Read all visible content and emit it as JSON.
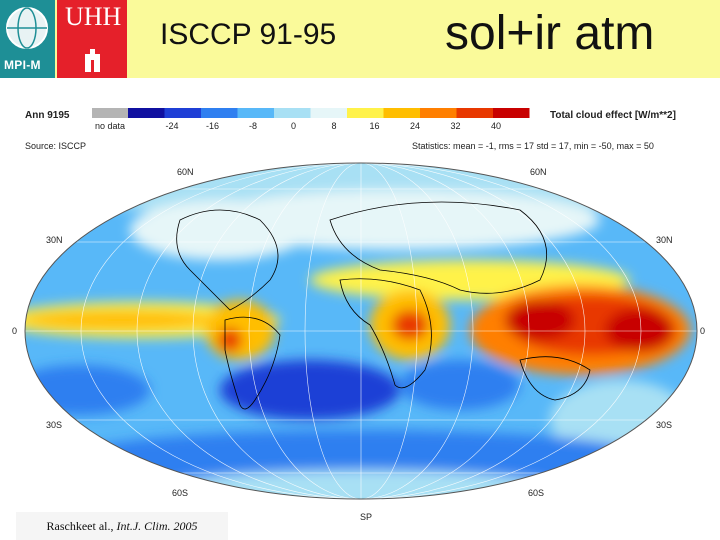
{
  "header": {
    "logo_mpi_text": "MPI-M",
    "logo_uhh_text": "UHH",
    "title_left": "ISCCP 91-95",
    "title_right": "sol+ir  atm"
  },
  "map": {
    "period_label": "Ann 9195",
    "source_label": "Source: ISCCP",
    "variable_label": "Total cloud effect [W/m**2]",
    "statistics_label": "Statistics: mean = -1, rms = 17  std = 17, min = -50, max = 50",
    "colorbar": {
      "no_data_label": "no data",
      "ticks": [
        "-24",
        "-16",
        "-8",
        "0",
        "8",
        "16",
        "24",
        "32",
        "40"
      ],
      "colors": [
        "#b4b4b4",
        "#1010a0",
        "#1f3fd6",
        "#2f7ff0",
        "#58b8f8",
        "#a8e0f4",
        "#e6f6f8",
        "#fff24a",
        "#ffbe00",
        "#ff7f00",
        "#e83800",
        "#c80000"
      ]
    },
    "lat_labels": {
      "n60_left": "60N",
      "n60_right": "60N",
      "n30_left": "30N",
      "n30_right": "30N",
      "eq_left": "0",
      "eq_right": "0",
      "s30_left": "30S",
      "s30_right": "30S",
      "s60_left": "60S",
      "s60_right": "60S",
      "south_pole": "SP"
    }
  },
  "citation": {
    "authors": "Raschkeet al., ",
    "journal": "Int.J. Clim. 2005"
  }
}
